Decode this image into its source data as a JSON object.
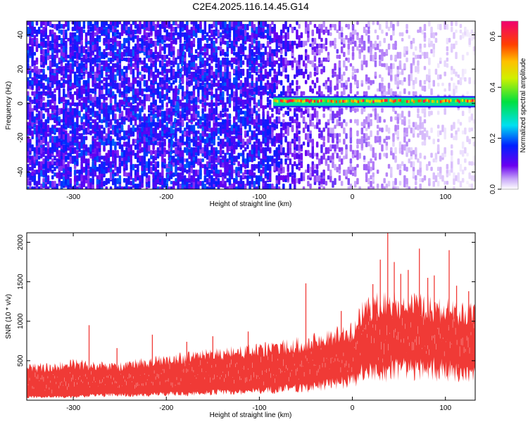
{
  "title": "C2E4.2025.116.14.45.G14",
  "colors": {
    "snr_fill": "#f03a36",
    "background": "#ffffff",
    "noise_dark": "#6400f0",
    "noise_light": "#d8c8fa"
  },
  "chart_data": [
    {
      "type": "heatmap",
      "xlabel": "Height of straight line (km)",
      "ylabel": "Frequency (Hz)",
      "xlim": [
        -350,
        132
      ],
      "ylim": [
        -50,
        48
      ],
      "xticks": [
        -300,
        -200,
        -100,
        0,
        100
      ],
      "yticks": [
        -40,
        -20,
        0,
        20,
        40
      ],
      "grid": false,
      "colorbar": {
        "label": "Normalized spectral amplitude",
        "range": [
          0,
          0.66
        ],
        "ticks": [
          0.0,
          0.2,
          0.4,
          0.6
        ],
        "tick_labels": [
          "0.0",
          "0.2",
          "0.4",
          "0.6"
        ],
        "colormap": "rainbow: white-violet-blue-cyan-green-yellow-orange-red-magenta"
      },
      "features": {
        "signal_band": {
          "x_start": -85,
          "x_end": 132,
          "freq_center": 1,
          "amplitude": "0.3-0.66"
        },
        "sloped_trace": {
          "x_at_bottom": -200,
          "x_at_top": -180,
          "amplitude": "0.2"
        },
        "noise_dense_until_x": -100,
        "noise_fades_after_x": -50
      }
    },
    {
      "type": "area",
      "xlabel": "Height of straight line (km)",
      "ylabel": "SNR (10 * v/v)",
      "xlim": [
        -350,
        132
      ],
      "ylim": [
        0,
        2120
      ],
      "xticks": [
        -300,
        -200,
        -100,
        0,
        100
      ],
      "yticks": [
        500,
        1000,
        1500,
        2000
      ],
      "grid": false,
      "envelope": {
        "x": [
          -350,
          -320,
          -300,
          -280,
          -250,
          -230,
          -200,
          -175,
          -150,
          -125,
          -100,
          -75,
          -50,
          -25,
          0,
          10,
          25,
          50,
          75,
          100,
          115,
          132
        ],
        "upper": [
          420,
          430,
          470,
          450,
          430,
          480,
          520,
          560,
          590,
          620,
          650,
          690,
          740,
          820,
          900,
          1120,
          1220,
          1250,
          1230,
          1170,
          1120,
          1120
        ],
        "lower": [
          40,
          40,
          40,
          60,
          70,
          60,
          80,
          80,
          100,
          100,
          120,
          140,
          150,
          200,
          250,
          330,
          350,
          380,
          400,
          380,
          350,
          320
        ]
      },
      "spikes": [
        {
          "x": -283,
          "y": 950
        },
        {
          "x": -253,
          "y": 660
        },
        {
          "x": -215,
          "y": 830
        },
        {
          "x": -178,
          "y": 740
        },
        {
          "x": -150,
          "y": 810
        },
        {
          "x": -112,
          "y": 870
        },
        {
          "x": -50,
          "y": 1480
        },
        {
          "x": -12,
          "y": 1130
        },
        {
          "x": 22,
          "y": 1470
        },
        {
          "x": 30,
          "y": 1780
        },
        {
          "x": 38,
          "y": 2120
        },
        {
          "x": 45,
          "y": 1750
        },
        {
          "x": 52,
          "y": 1600
        },
        {
          "x": 60,
          "y": 1650
        },
        {
          "x": 72,
          "y": 1920
        },
        {
          "x": 81,
          "y": 1550
        },
        {
          "x": 88,
          "y": 1580
        },
        {
          "x": 104,
          "y": 1900
        },
        {
          "x": 112,
          "y": 1450
        },
        {
          "x": 125,
          "y": 1380
        }
      ]
    }
  ]
}
